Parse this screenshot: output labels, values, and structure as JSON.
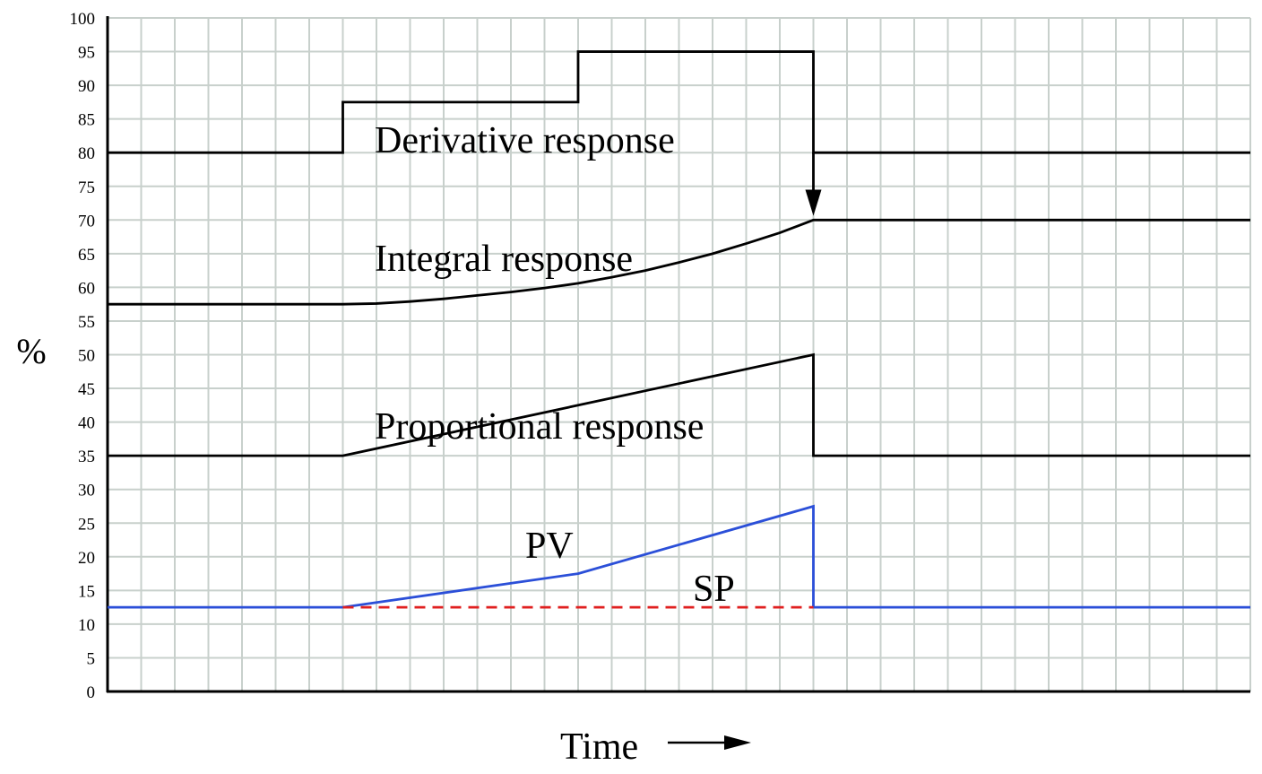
{
  "chart_data": {
    "type": "line",
    "title": "",
    "xlabel": "Time",
    "ylabel": "%",
    "ylim": [
      0,
      100
    ],
    "xlim": [
      0,
      34
    ],
    "grid": true,
    "y_ticks": [
      0,
      5,
      10,
      15,
      20,
      25,
      30,
      35,
      40,
      45,
      50,
      55,
      60,
      65,
      70,
      75,
      80,
      85,
      90,
      95,
      100
    ],
    "series": [
      {
        "name": "Derivative response",
        "color": "#000000",
        "style": "solid",
        "points": [
          [
            0,
            80
          ],
          [
            7,
            80
          ],
          [
            7,
            87.5
          ],
          [
            14,
            87.5
          ],
          [
            14,
            95
          ],
          [
            21,
            95
          ],
          [
            21,
            80
          ],
          [
            34,
            80
          ]
        ]
      },
      {
        "name": "Integral response",
        "color": "#000000",
        "style": "solid",
        "points": [
          [
            0,
            57.5
          ],
          [
            7,
            57.5
          ],
          [
            8,
            57.6
          ],
          [
            9,
            57.9
          ],
          [
            10,
            58.3
          ],
          [
            11,
            58.8
          ],
          [
            12,
            59.3
          ],
          [
            13,
            59.9
          ],
          [
            14,
            60.6
          ],
          [
            15,
            61.5
          ],
          [
            16,
            62.5
          ],
          [
            17,
            63.7
          ],
          [
            18,
            65.0
          ],
          [
            19,
            66.5
          ],
          [
            20,
            68.1
          ],
          [
            21,
            70
          ],
          [
            34,
            70
          ]
        ]
      },
      {
        "name": "Proportional response",
        "color": "#000000",
        "style": "solid",
        "points": [
          [
            0,
            35
          ],
          [
            7,
            35
          ],
          [
            21,
            50
          ],
          [
            21,
            35
          ],
          [
            34,
            35
          ]
        ]
      },
      {
        "name": "PV",
        "color": "#2b4fd8",
        "style": "solid",
        "points": [
          [
            0,
            12.5
          ],
          [
            7,
            12.5
          ],
          [
            14,
            17.5
          ],
          [
            21,
            27.5
          ],
          [
            21,
            12.5
          ],
          [
            34,
            12.5
          ]
        ]
      },
      {
        "name": "SP",
        "color": "#e02020",
        "style": "dashed",
        "points": [
          [
            7,
            12.5
          ],
          [
            21,
            12.5
          ]
        ]
      }
    ],
    "labels": {
      "derivative": "Derivative response",
      "integral": "Integral response",
      "proportional": "Proportional response",
      "pv": "PV",
      "sp": "SP"
    },
    "time_arrow": "→"
  }
}
